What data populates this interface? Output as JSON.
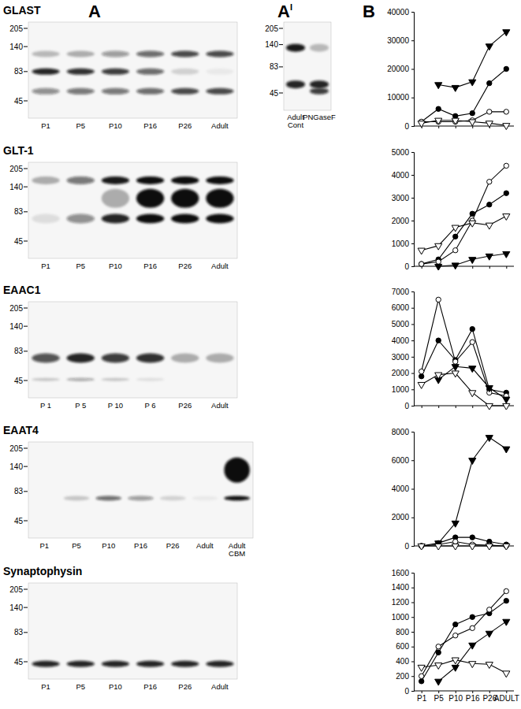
{
  "panel_labels": {
    "a": "A",
    "a_inset": "A",
    "a_inset_sup": "I",
    "b": "B"
  },
  "blots": [
    {
      "title": "GLAST",
      "mw": [
        205,
        140,
        83,
        45
      ],
      "lanes": [
        "P1",
        "P5",
        "P10",
        "P16",
        "P26",
        "Adult"
      ]
    },
    {
      "title": "GLT-1",
      "mw": [
        205,
        140,
        83,
        45
      ],
      "lanes": [
        "P1",
        "P5",
        "P10",
        "P16",
        "P26",
        "Adult"
      ]
    },
    {
      "title": "EAAC1",
      "mw": [
        205,
        140,
        83,
        45
      ],
      "lanes": [
        "P 1",
        "P 5",
        "P 10",
        "P 6",
        "P26",
        "Adult"
      ]
    },
    {
      "title": "EAAT4",
      "mw": [
        205,
        140,
        83,
        45
      ],
      "lanes": [
        "P1",
        "P5",
        "P10",
        "P16",
        "P26",
        "Adult",
        [
          "Adult",
          "CBM"
        ]
      ]
    },
    {
      "title": "Synaptophysin",
      "mw": [
        205,
        140,
        83,
        45
      ],
      "lanes": [
        "P1",
        "P5",
        "P10",
        "P16",
        "P26",
        "Adult"
      ]
    }
  ],
  "inset": {
    "mw": [
      205,
      140,
      83,
      45
    ],
    "lanes": [
      [
        "Adult",
        "Cont"
      ],
      [
        "PNGaseF"
      ]
    ]
  },
  "chart_data": [
    {
      "type": "line",
      "categories": [
        "P1",
        "P5",
        "P10",
        "P16",
        "P26",
        "ADULT"
      ],
      "tick_labels": "y",
      "ylim": [
        0,
        40000
      ],
      "yticks": [
        0,
        10000,
        20000,
        30000,
        40000
      ],
      "series": [
        {
          "color": "#000000",
          "marker": "circle",
          "values": [
            1500,
            6000,
            3500,
            4500,
            15000,
            20000
          ]
        },
        {
          "color": "#000000",
          "marker": "circle-open",
          "values": [
            1500,
            1500,
            1500,
            2000,
            5000,
            5000
          ]
        },
        {
          "color": "#000000",
          "marker": "triangle-down",
          "values": [
            null,
            14500,
            13500,
            15500,
            28000,
            33000
          ]
        },
        {
          "color": "#000000",
          "marker": "triangle-down-open",
          "values": [
            1000,
            2000,
            2000,
            1500,
            1000,
            200
          ]
        }
      ]
    },
    {
      "type": "line",
      "categories": [
        "P1",
        "P5",
        "P10",
        "P16",
        "P26",
        "ADULT"
      ],
      "tick_labels": "y",
      "ylim": [
        0,
        5000
      ],
      "yticks": [
        0,
        1000,
        2000,
        3000,
        4000,
        5000
      ],
      "series": [
        {
          "color": "#000000",
          "marker": "circle",
          "values": [
            100,
            300,
            1300,
            2300,
            2700,
            3200
          ]
        },
        {
          "color": "#000000",
          "marker": "circle-open",
          "values": [
            100,
            200,
            700,
            2000,
            3700,
            4400
          ]
        },
        {
          "color": "#000000",
          "marker": "triangle-down",
          "values": [
            null,
            0,
            50,
            300,
            450,
            550
          ]
        },
        {
          "color": "#000000",
          "marker": "triangle-down-open",
          "values": [
            700,
            900,
            1700,
            1900,
            1800,
            2200
          ]
        }
      ]
    },
    {
      "type": "line",
      "categories": [
        "P1",
        "P5",
        "P10",
        "P16",
        "P26",
        "ADULT"
      ],
      "tick_labels": "y",
      "ylim": [
        0,
        7000
      ],
      "yticks": [
        0,
        1000,
        2000,
        3000,
        4000,
        5000,
        6000,
        7000
      ],
      "series": [
        {
          "color": "#000000",
          "marker": "circle",
          "values": [
            1800,
            4000,
            2800,
            4700,
            1000,
            800
          ]
        },
        {
          "color": "#000000",
          "marker": "circle-open",
          "values": [
            2100,
            6500,
            2700,
            3900,
            800,
            600
          ]
        },
        {
          "color": "#000000",
          "marker": "triangle-down",
          "values": [
            null,
            1600,
            2400,
            2300,
            1100,
            400
          ]
        },
        {
          "color": "#000000",
          "marker": "triangle-down-open",
          "values": [
            1300,
            1900,
            2000,
            800,
            0,
            0
          ]
        }
      ]
    },
    {
      "type": "line",
      "categories": [
        "P1",
        "P5",
        "P10",
        "P16",
        "P26",
        "ADULT"
      ],
      "tick_labels": "y",
      "ylim": [
        0,
        8000
      ],
      "yticks": [
        0,
        2000,
        4000,
        6000,
        8000
      ],
      "series": [
        {
          "color": "#000000",
          "marker": "circle",
          "values": [
            0,
            200,
            600,
            600,
            300,
            100
          ]
        },
        {
          "color": "#000000",
          "marker": "circle-open",
          "values": [
            0,
            100,
            300,
            100,
            50,
            0
          ]
        },
        {
          "color": "#000000",
          "marker": "triangle-down",
          "values": [
            null,
            200,
            1600,
            6000,
            7600,
            6800
          ]
        },
        {
          "color": "#000000",
          "marker": "triangle-down-open",
          "values": [
            0,
            0,
            0,
            0,
            0,
            0
          ]
        }
      ]
    },
    {
      "type": "line",
      "categories": [
        "P1",
        "P5",
        "P10",
        "P16",
        "P26",
        "ADULT"
      ],
      "ylim": [
        0,
        1600
      ],
      "yticks": [
        0,
        200,
        400,
        600,
        800,
        1000,
        1200,
        1400,
        1600
      ],
      "series": [
        {
          "color": "#000000",
          "marker": "circle",
          "values": [
            130,
            520,
            900,
            1000,
            1050,
            1220
          ]
        },
        {
          "color": "#000000",
          "marker": "circle-open",
          "values": [
            200,
            600,
            750,
            850,
            1100,
            1350
          ]
        },
        {
          "color": "#000000",
          "marker": "triangle-down",
          "values": [
            null,
            130,
            320,
            620,
            780,
            940
          ]
        },
        {
          "color": "#000000",
          "marker": "triangle-down-open",
          "values": [
            320,
            350,
            420,
            370,
            360,
            240
          ]
        }
      ]
    }
  ]
}
